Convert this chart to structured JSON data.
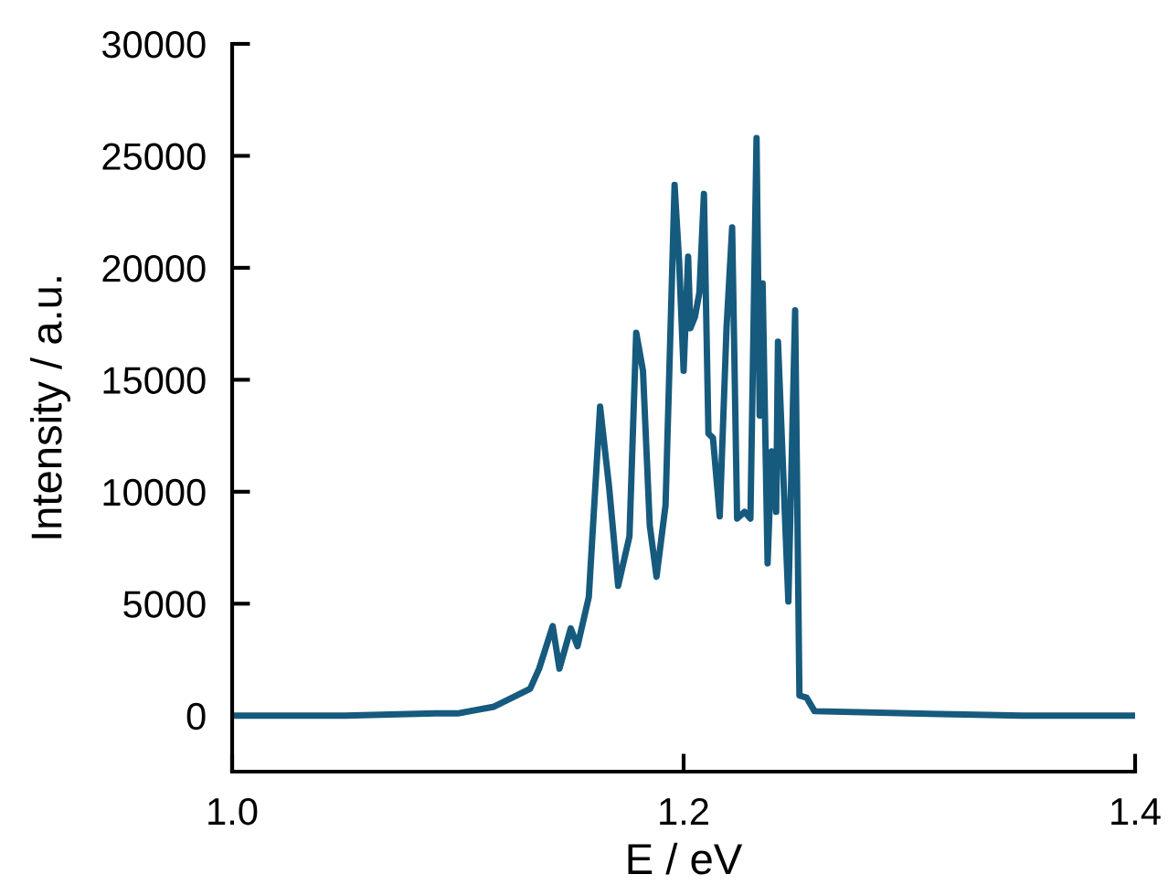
{
  "chart_data": {
    "type": "line",
    "xlabel": "E / eV",
    "ylabel": "Intensity / a.u.",
    "xlim": [
      1.0,
      1.4
    ],
    "xticks": [
      {
        "value": 1.0,
        "label": "1.0"
      },
      {
        "value": 1.2,
        "label": "1.2"
      },
      {
        "value": 1.4,
        "label": "1.4"
      }
    ],
    "ylim": [
      -2500,
      30000
    ],
    "yticks": [
      0,
      5000,
      10000,
      15000,
      20000,
      25000,
      30000
    ],
    "grid": false,
    "marker": "none",
    "line_style": "solid",
    "series": [
      {
        "color": "#165a7e",
        "x": [
          1.0,
          1.05,
          1.09,
          1.1,
          1.116,
          1.132,
          1.136,
          1.142,
          1.145,
          1.15,
          1.153,
          1.158,
          1.163,
          1.167,
          1.171,
          1.176,
          1.179,
          1.182,
          1.185,
          1.188,
          1.192,
          1.196,
          1.198,
          1.2,
          1.202,
          1.203,
          1.205,
          1.207,
          1.209,
          1.211,
          1.213,
          1.216,
          1.219,
          1.2215,
          1.2237,
          1.227,
          1.2296,
          1.2323,
          1.2337,
          1.235,
          1.2372,
          1.239,
          1.241,
          1.2418,
          1.2464,
          1.2494,
          1.2513,
          1.2545,
          1.258,
          1.3,
          1.35,
          1.4
        ],
        "values": [
          0,
          0,
          100,
          100,
          400,
          1200,
          2100,
          4000,
          2100,
          3900,
          3100,
          5300,
          13800,
          10200,
          5800,
          8000,
          17100,
          15400,
          8500,
          6200,
          9400,
          23700,
          20300,
          15400,
          20500,
          17300,
          17800,
          18900,
          23300,
          12600,
          12400,
          8900,
          17300,
          21800,
          8800,
          9100,
          8800,
          25800,
          13400,
          19300,
          6800,
          11800,
          9100,
          16700,
          5100,
          18100,
          900,
          800,
          200,
          100,
          0,
          0
        ]
      }
    ]
  }
}
